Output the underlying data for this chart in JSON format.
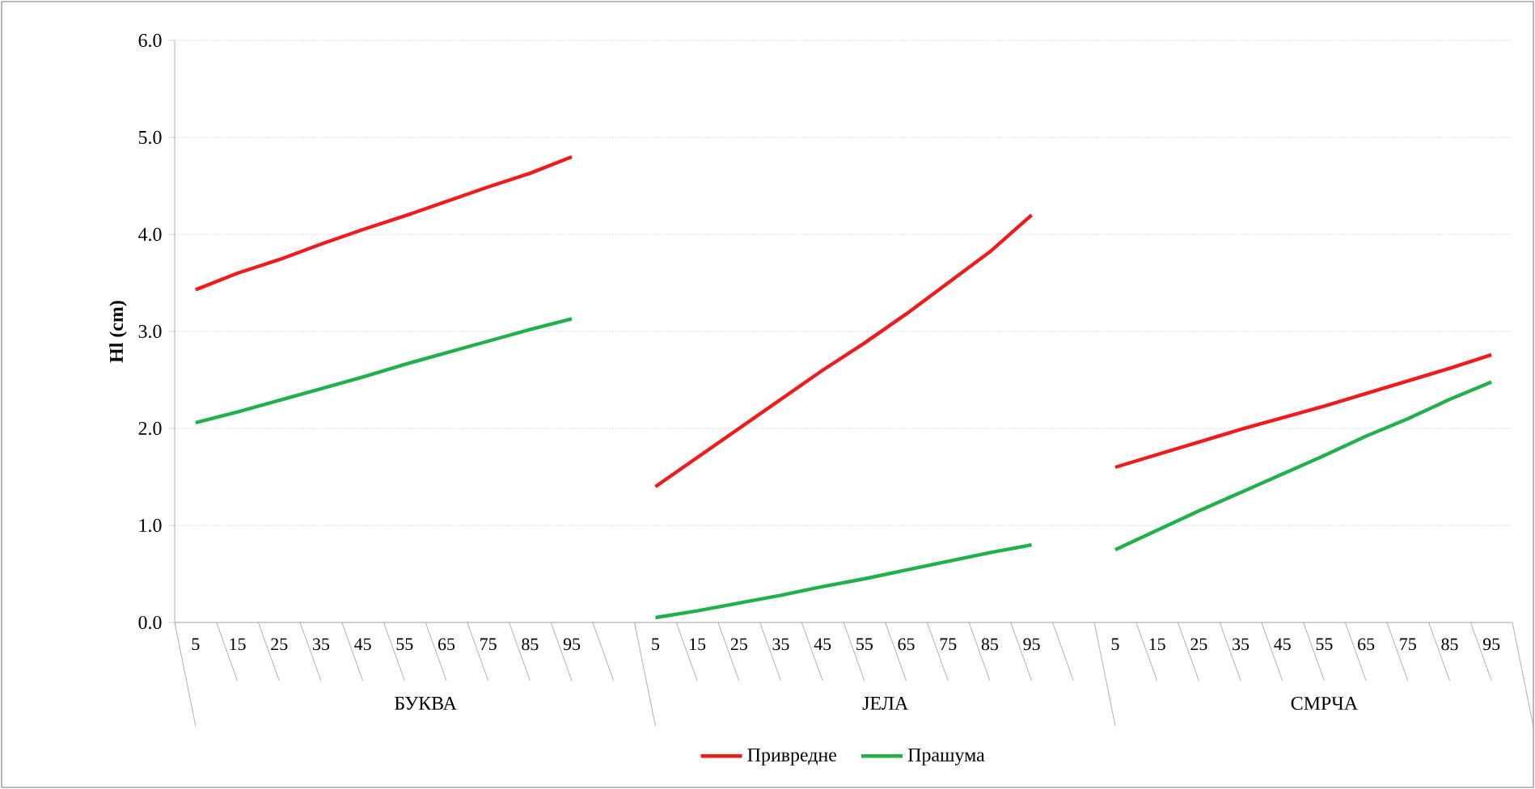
{
  "chart_data": {
    "type": "line",
    "ylabel": "Hl (cm)",
    "categories": [
      "5",
      "15",
      "25",
      "35",
      "45",
      "55",
      "65",
      "75",
      "85",
      "95",
      null,
      "5",
      "15",
      "25",
      "35",
      "45",
      "55",
      "65",
      "75",
      "85",
      "95",
      null,
      "5",
      "15",
      "25",
      "35",
      "45",
      "55",
      "65",
      "75",
      "85",
      "95"
    ],
    "annotations": [
      "БУКВА",
      "ЈЕЛА",
      "СМРЧА"
    ],
    "series": [
      {
        "name": "Привредне",
        "color": "#ee1c1c",
        "values": [
          3.43,
          3.6,
          3.74,
          3.9,
          4.05,
          4.19,
          4.34,
          4.49,
          4.63,
          4.8,
          null,
          1.4,
          1.7,
          2.0,
          2.3,
          2.6,
          2.88,
          3.18,
          3.5,
          3.82,
          4.2,
          null,
          1.6,
          1.73,
          1.86,
          1.99,
          2.11,
          2.23,
          2.36,
          2.49,
          2.62,
          2.76
        ]
      },
      {
        "name": "Прашума",
        "color": "#22b04b",
        "values": [
          2.06,
          2.17,
          2.29,
          2.41,
          2.53,
          2.66,
          2.78,
          2.9,
          3.02,
          3.13,
          null,
          0.05,
          0.12,
          0.2,
          0.28,
          0.37,
          0.45,
          0.54,
          0.63,
          0.72,
          0.8,
          null,
          0.75,
          0.95,
          1.15,
          1.34,
          1.53,
          1.72,
          1.92,
          2.1,
          2.3,
          2.48
        ]
      }
    ],
    "ylim": [
      0,
      6
    ],
    "yticks": [
      {
        "value": 0,
        "label": "0.0"
      },
      {
        "value": 1,
        "label": "1.0"
      },
      {
        "value": 2,
        "label": "2.0"
      },
      {
        "value": 3,
        "label": "3.0"
      },
      {
        "value": 4,
        "label": "4.0"
      },
      {
        "value": 5,
        "label": "5.0"
      },
      {
        "value": 6,
        "label": "6.0"
      }
    ],
    "grid": "y",
    "legend": "bottom"
  }
}
